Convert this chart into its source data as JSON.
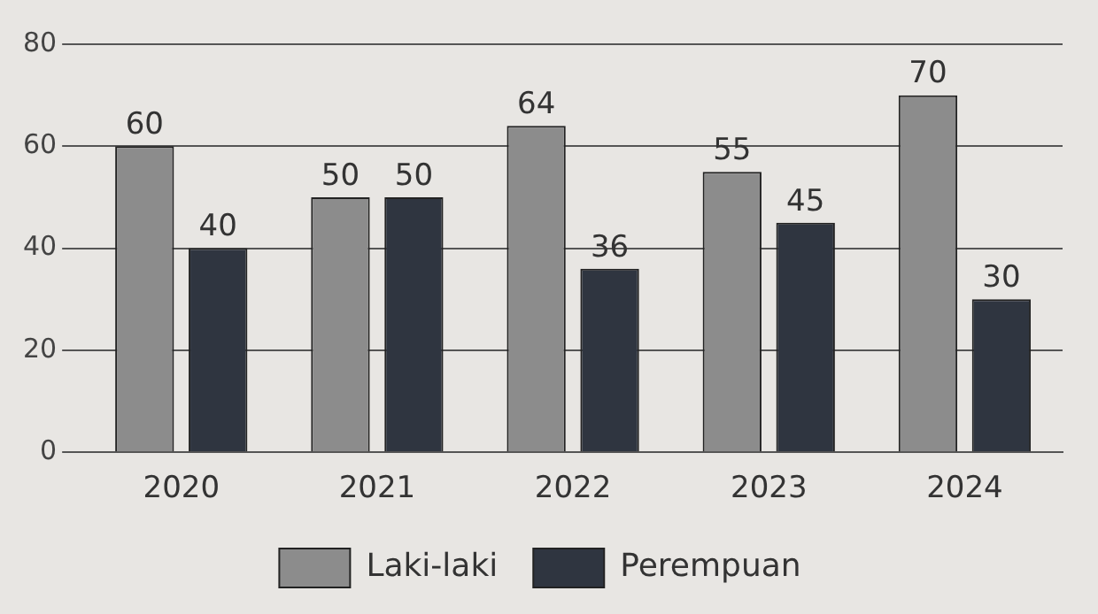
{
  "chart_data": {
    "type": "bar",
    "categories": [
      "2020",
      "2021",
      "2022",
      "2023",
      "2024"
    ],
    "series": [
      {
        "name": "Laki-laki",
        "color": "#8c8c8c",
        "values": [
          60,
          50,
          64,
          55,
          70
        ]
      },
      {
        "name": "Perempuan",
        "color": "#2f3540",
        "values": [
          40,
          50,
          36,
          45,
          30
        ]
      }
    ],
    "ylim": [
      0,
      80
    ],
    "yticks": [
      0,
      20,
      40,
      60,
      80
    ],
    "grid": "y",
    "legend": "bottom",
    "data_labels": true
  }
}
